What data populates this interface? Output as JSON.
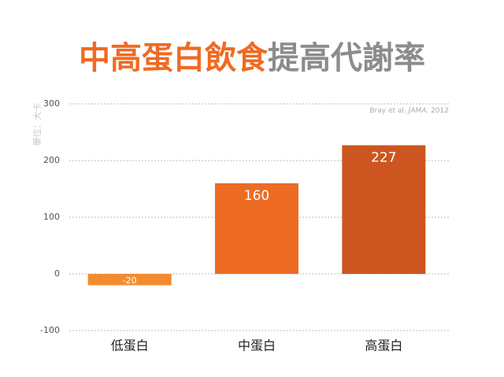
{
  "chart_data": {
    "type": "bar",
    "title_parts": [
      {
        "text": "中高蛋白飲食",
        "color": "#ef6a22"
      },
      {
        "text": "提高代謝率",
        "color": "#8c8c8c"
      }
    ],
    "y_label": "單位：大卡",
    "source_parts": [
      {
        "text": "Bray et al. ",
        "italic": false
      },
      {
        "text": "JAMA",
        "italic": true
      },
      {
        "text": ". 2012",
        "italic": false
      }
    ],
    "categories": [
      "低蛋白",
      "中蛋白",
      "高蛋白"
    ],
    "values": [
      -20,
      160,
      227
    ],
    "colors": [
      "#f28c2f",
      "#ee6b24",
      "#cd5620"
    ],
    "ylim": [
      -100,
      300
    ],
    "yticks": [
      -100,
      0,
      100,
      200,
      300
    ],
    "grid": true
  }
}
